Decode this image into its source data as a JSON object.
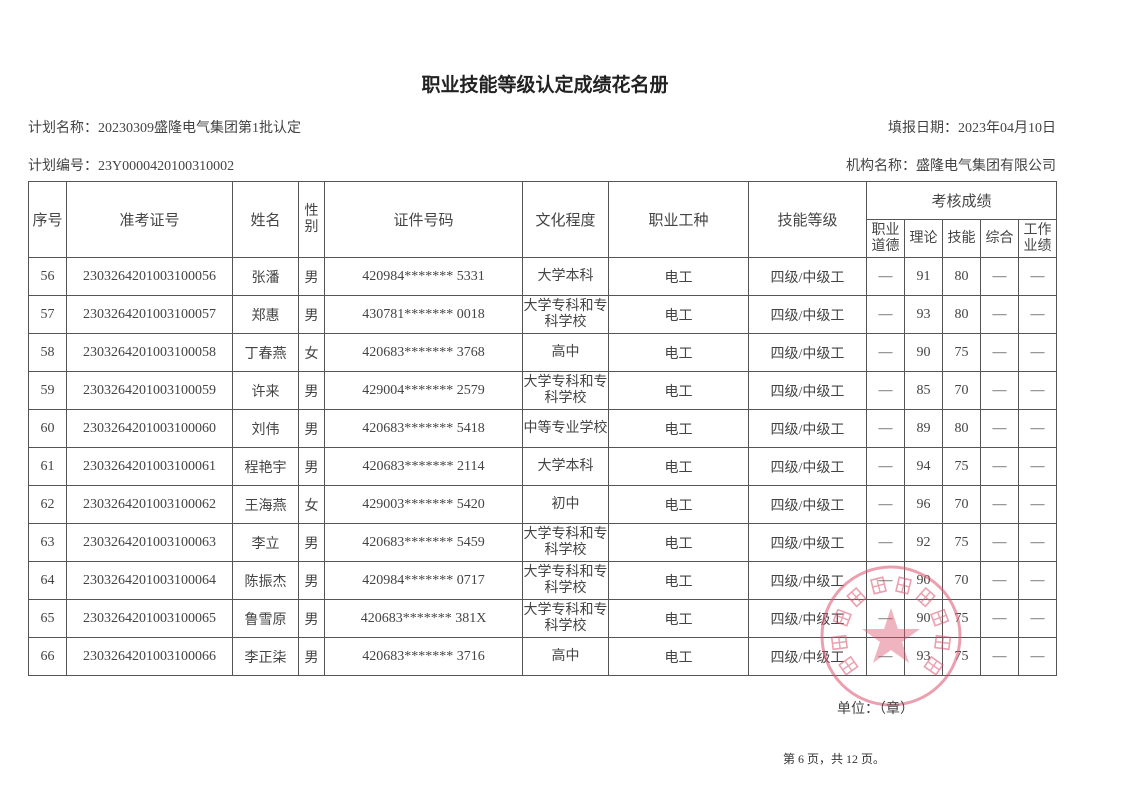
{
  "title": "职业技能等级认定成绩花名册",
  "plan_name": "计划名称：20230309盛隆电气集团第1批认定",
  "fill_date": "填报日期：2023年04月10日",
  "plan_number": "计划编号：23Y0000420100310002",
  "org_name": "机构名称：盛隆电气集团有限公司",
  "headers": {
    "seq": "序号",
    "exam_id": "准考证号",
    "name": "姓名",
    "gender": "性别",
    "id_number": "证件号码",
    "education": "文化程度",
    "occupation": "职业工种",
    "skill_level": "技能等级",
    "scores": "考核成绩",
    "ethics": "职业道德",
    "theory": "理论",
    "skill": "技能",
    "overall": "综合",
    "work": "工作业绩"
  },
  "rows": [
    {
      "seq": "56",
      "exam_id": "2303264201003100056",
      "name": "张潘",
      "gender": "男",
      "id_number": "420984******* 5331",
      "education": "大学本科",
      "occupation": "电工",
      "skill_level": "四级/中级工",
      "ethics": "—",
      "theory": "91",
      "skill": "80",
      "overall": "—",
      "work": "—"
    },
    {
      "seq": "57",
      "exam_id": "2303264201003100057",
      "name": "郑惠",
      "gender": "男",
      "id_number": "430781******* 0018",
      "education": "大学专科和专科学校",
      "occupation": "电工",
      "skill_level": "四级/中级工",
      "ethics": "—",
      "theory": "93",
      "skill": "80",
      "overall": "—",
      "work": "—"
    },
    {
      "seq": "58",
      "exam_id": "2303264201003100058",
      "name": "丁春燕",
      "gender": "女",
      "id_number": "420683******* 3768",
      "education": "高中",
      "occupation": "电工",
      "skill_level": "四级/中级工",
      "ethics": "—",
      "theory": "90",
      "skill": "75",
      "overall": "—",
      "work": "—"
    },
    {
      "seq": "59",
      "exam_id": "2303264201003100059",
      "name": "许来",
      "gender": "男",
      "id_number": "429004******* 2579",
      "education": "大学专科和专科学校",
      "occupation": "电工",
      "skill_level": "四级/中级工",
      "ethics": "—",
      "theory": "85",
      "skill": "70",
      "overall": "—",
      "work": "—"
    },
    {
      "seq": "60",
      "exam_id": "2303264201003100060",
      "name": "刘伟",
      "gender": "男",
      "id_number": "420683******* 5418",
      "education": "中等专业学校",
      "occupation": "电工",
      "skill_level": "四级/中级工",
      "ethics": "—",
      "theory": "89",
      "skill": "80",
      "overall": "—",
      "work": "—"
    },
    {
      "seq": "61",
      "exam_id": "2303264201003100061",
      "name": "程艳宇",
      "gender": "男",
      "id_number": "420683******* 2114",
      "education": "大学本科",
      "occupation": "电工",
      "skill_level": "四级/中级工",
      "ethics": "—",
      "theory": "94",
      "skill": "75",
      "overall": "—",
      "work": "—"
    },
    {
      "seq": "62",
      "exam_id": "2303264201003100062",
      "name": "王海燕",
      "gender": "女",
      "id_number": "429003******* 5420",
      "education": "初中",
      "occupation": "电工",
      "skill_level": "四级/中级工",
      "ethics": "—",
      "theory": "96",
      "skill": "70",
      "overall": "—",
      "work": "—"
    },
    {
      "seq": "63",
      "exam_id": "2303264201003100063",
      "name": "李立",
      "gender": "男",
      "id_number": "420683******* 5459",
      "education": "大学专科和专科学校",
      "occupation": "电工",
      "skill_level": "四级/中级工",
      "ethics": "—",
      "theory": "92",
      "skill": "75",
      "overall": "—",
      "work": "—"
    },
    {
      "seq": "64",
      "exam_id": "2303264201003100064",
      "name": "陈振杰",
      "gender": "男",
      "id_number": "420984******* 0717",
      "education": "大学专科和专科学校",
      "occupation": "电工",
      "skill_level": "四级/中级工",
      "ethics": "—",
      "theory": "90",
      "skill": "70",
      "overall": "—",
      "work": "—"
    },
    {
      "seq": "65",
      "exam_id": "2303264201003100065",
      "name": "鲁雪原",
      "gender": "男",
      "id_number": "420683******* 381X",
      "education": "大学专科和专科学校",
      "occupation": "电工",
      "skill_level": "四级/中级工",
      "ethics": "—",
      "theory": "90",
      "skill": "75",
      "overall": "—",
      "work": "—"
    },
    {
      "seq": "66",
      "exam_id": "2303264201003100066",
      "name": "李正柒",
      "gender": "男",
      "id_number": "420683******* 3716",
      "education": "高中",
      "occupation": "电工",
      "skill_level": "四级/中级工",
      "ethics": "—",
      "theory": "93",
      "skill": "75",
      "overall": "—",
      "work": "—"
    }
  ],
  "stamp": {
    "text": "盛隆电气集团有限公司",
    "color": "#d9546e"
  },
  "unit_label": "单位：（章）",
  "page_info": "第 6 页，共 12 页。"
}
